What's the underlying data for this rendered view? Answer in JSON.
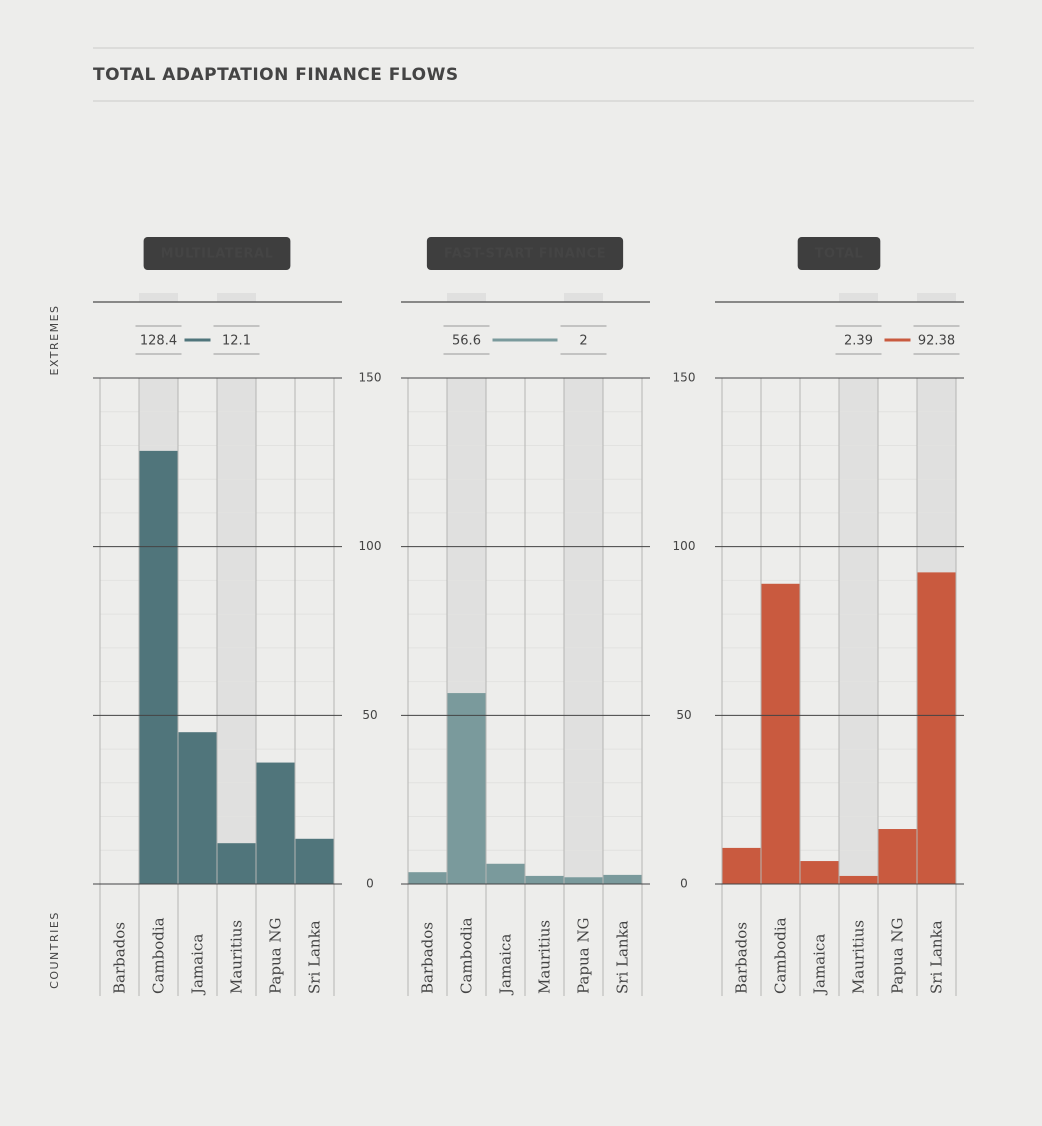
{
  "title": "TOTAL ADAPTATION FINANCE FLOWS",
  "side_labels": {
    "extremes": "EXTREMES",
    "countries": "COUNTRIES"
  },
  "chart_data": [
    {
      "type": "bar",
      "title": "MULTILATERAL",
      "color": "#50757b",
      "categories": [
        "Barbados",
        "Cambodia",
        "Jamaica",
        "Mauritius",
        "Papua NG",
        "Sri Lanka"
      ],
      "values": [
        null,
        128.4,
        45,
        12.1,
        36,
        13.4
      ],
      "ylim": [
        0,
        150
      ],
      "yticks": [
        0,
        50,
        100,
        150
      ],
      "show_ytick_labels": false,
      "grid": true,
      "minor_grid": 10
    },
    {
      "type": "bar",
      "title": "FAST-START FINANCE",
      "color": "#7a9a9c",
      "categories": [
        "Barbados",
        "Cambodia",
        "Jamaica",
        "Mauritius",
        "Papua NG",
        "Sri Lanka"
      ],
      "values": [
        3.5,
        56.6,
        6,
        2.4,
        2,
        2.7
      ],
      "ylim": [
        0,
        150
      ],
      "yticks": [
        0,
        50,
        100,
        150
      ],
      "show_ytick_labels": true,
      "grid": true,
      "minor_grid": 10
    },
    {
      "type": "bar",
      "title": "TOTAL",
      "color": "#c95a3f",
      "categories": [
        "Barbados",
        "Cambodia",
        "Jamaica",
        "Mauritius",
        "Papua NG",
        "Sri Lanka"
      ],
      "values": [
        10.7,
        89,
        6.8,
        2.39,
        16.3,
        92.38
      ],
      "ylim": [
        0,
        150
      ],
      "yticks": [
        0,
        50,
        100,
        150
      ],
      "show_ytick_labels": true,
      "grid": true,
      "minor_grid": 10
    }
  ]
}
